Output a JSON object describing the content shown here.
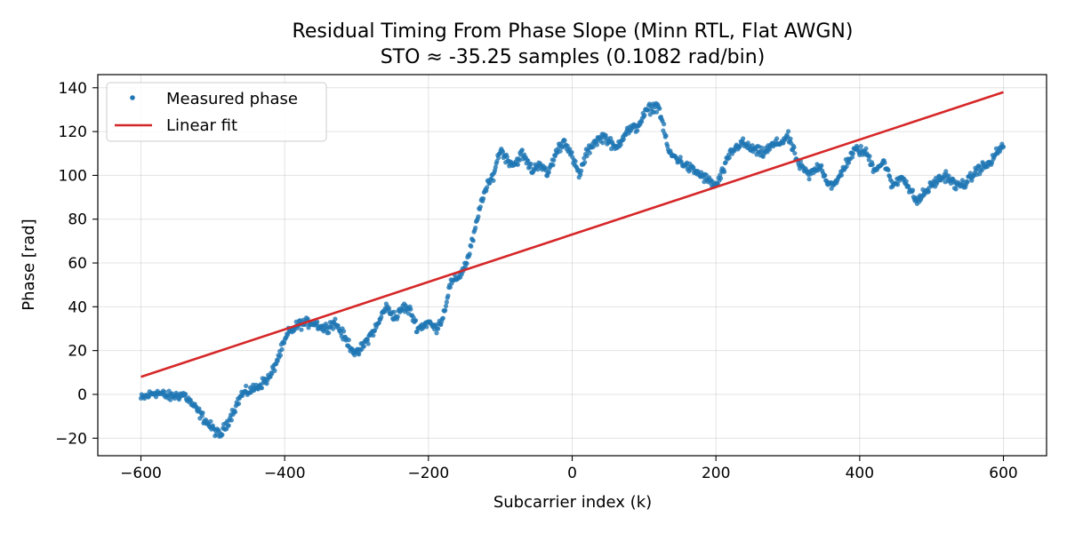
{
  "chart_data": {
    "type": "scatter",
    "title": "Residual Timing From Phase Slope (Minn RTL, Flat AWGN)",
    "subtitle": "STO ≈ -35.25 samples (0.1082 rad/bin)",
    "xlabel": "Subcarrier index (k)",
    "ylabel": "Phase [rad]",
    "xlim": [
      -660,
      660
    ],
    "ylim": [
      -28,
      146
    ],
    "xticks": [
      -600,
      -400,
      -200,
      0,
      200,
      400,
      600
    ],
    "xtick_labels": [
      "−600",
      "−400",
      "−200",
      "0",
      "200",
      "400",
      "600"
    ],
    "yticks": [
      -20,
      0,
      20,
      40,
      60,
      80,
      100,
      120,
      140
    ],
    "ytick_labels": [
      "−20",
      "0",
      "20",
      "40",
      "60",
      "80",
      "100",
      "120",
      "140"
    ],
    "grid": true,
    "legend_position": "top-left",
    "series": [
      {
        "name": "Measured phase",
        "type": "scatter",
        "color": "#1f77b4",
        "anchors_x": [
          -600,
          -580,
          -560,
          -540,
          -520,
          -505,
          -490,
          -475,
          -460,
          -440,
          -420,
          -405,
          -395,
          -380,
          -360,
          -345,
          -330,
          -315,
          -300,
          -285,
          -270,
          -260,
          -245,
          -235,
          -225,
          -215,
          -200,
          -190,
          -180,
          -170,
          -155,
          -145,
          -135,
          -125,
          -110,
          -100,
          -90,
          -80,
          -70,
          -55,
          -45,
          -35,
          -20,
          -10,
          0,
          10,
          20,
          30,
          45,
          60,
          75,
          90,
          105,
          120,
          128,
          135,
          145,
          160,
          180,
          200,
          210,
          220,
          235,
          250,
          265,
          280,
          290,
          300,
          315,
          330,
          345,
          355,
          365,
          380,
          395,
          410,
          420,
          435,
          445,
          460,
          470,
          480,
          490,
          505,
          520,
          535,
          550,
          565,
          580,
          590,
          600
        ],
        "anchors_y": [
          -2,
          1,
          -1,
          0,
          -8,
          -14,
          -19,
          -10,
          0,
          3,
          8,
          20,
          28,
          32,
          33,
          30,
          33,
          25,
          18,
          25,
          32,
          40,
          35,
          40,
          38,
          30,
          33,
          30,
          35,
          50,
          55,
          62,
          75,
          90,
          100,
          112,
          107,
          105,
          110,
          102,
          106,
          100,
          112,
          116,
          108,
          100,
          110,
          115,
          118,
          112,
          120,
          122,
          130,
          132,
          120,
          110,
          108,
          104,
          100,
          95,
          102,
          110,
          115,
          112,
          110,
          114,
          115,
          118,
          105,
          100,
          105,
          97,
          95,
          105,
          112,
          110,
          103,
          106,
          95,
          100,
          93,
          88,
          92,
          97,
          100,
          95,
          97,
          103,
          105,
          110,
          114
        ],
        "count": 1200
      },
      {
        "name": "Linear fit",
        "type": "line",
        "color": "#d62728",
        "x": [
          -600,
          600
        ],
        "y": [
          8,
          138
        ]
      }
    ]
  }
}
